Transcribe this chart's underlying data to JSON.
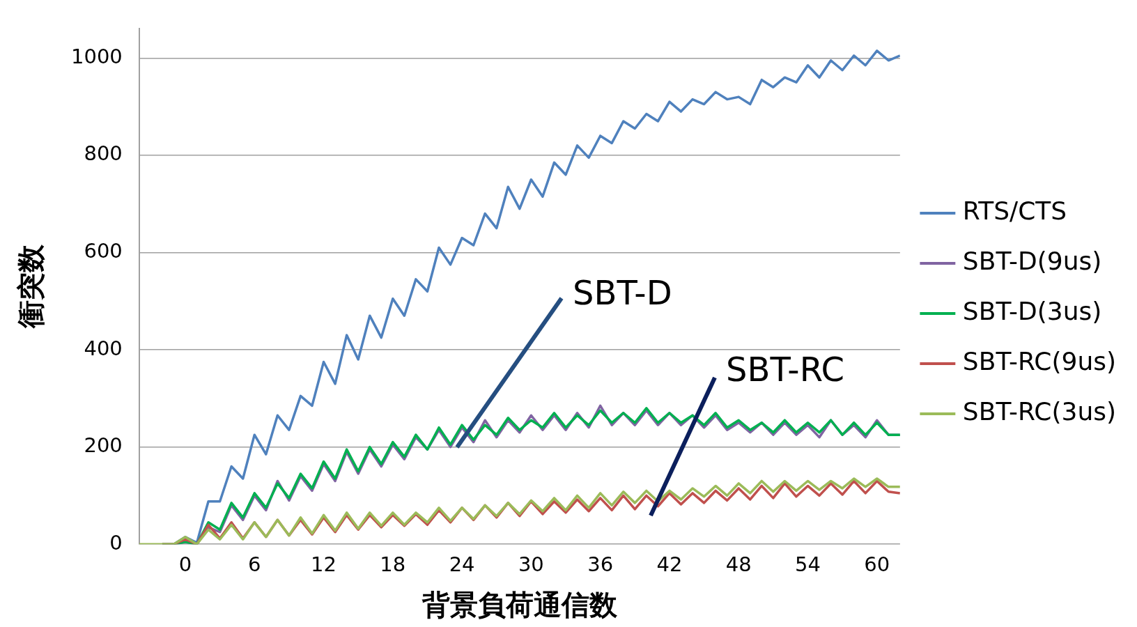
{
  "chart_data": {
    "type": "line",
    "xlabel": "背景負荷通信数",
    "ylabel": "衝突数",
    "x": [
      -4,
      -3,
      -2,
      -1,
      0,
      1,
      2,
      3,
      4,
      5,
      6,
      7,
      8,
      9,
      10,
      11,
      12,
      13,
      14,
      15,
      16,
      17,
      18,
      19,
      20,
      21,
      22,
      23,
      24,
      25,
      26,
      27,
      28,
      29,
      30,
      31,
      32,
      33,
      34,
      35,
      36,
      37,
      38,
      39,
      40,
      41,
      42,
      43,
      44,
      45,
      46,
      47,
      48,
      49,
      50,
      51,
      52,
      53,
      54,
      55,
      56,
      57,
      58,
      59,
      60,
      61,
      62
    ],
    "series": [
      {
        "name": "RTS/CTS",
        "color": "#4f81bd",
        "values": [
          null,
          null,
          null,
          0,
          15,
          3,
          88,
          88,
          160,
          135,
          225,
          185,
          265,
          235,
          305,
          285,
          375,
          330,
          430,
          380,
          470,
          425,
          505,
          470,
          545,
          520,
          610,
          575,
          630,
          615,
          680,
          650,
          735,
          690,
          750,
          715,
          785,
          760,
          820,
          795,
          840,
          825,
          870,
          855,
          885,
          870,
          910,
          890,
          915,
          905,
          930,
          915,
          920,
          905,
          955,
          940,
          960,
          950,
          985,
          960,
          995,
          975,
          1005,
          985,
          1015,
          995,
          1005
        ]
      },
      {
        "name": "SBT-D(9us)",
        "color": "#8064a2",
        "values": [
          null,
          null,
          0,
          0,
          5,
          0,
          35,
          25,
          80,
          50,
          100,
          70,
          130,
          90,
          140,
          110,
          165,
          130,
          190,
          145,
          195,
          160,
          205,
          175,
          220,
          195,
          235,
          200,
          240,
          210,
          255,
          220,
          255,
          230,
          265,
          235,
          265,
          235,
          270,
          240,
          285,
          245,
          270,
          245,
          275,
          245,
          270,
          245,
          265,
          240,
          265,
          235,
          250,
          230,
          250,
          225,
          250,
          225,
          245,
          220,
          255,
          225,
          245,
          220,
          255,
          225,
          225
        ]
      },
      {
        "name": "SBT-D(3us)",
        "color": "#00b050",
        "values": [
          null,
          null,
          0,
          0,
          5,
          0,
          45,
          30,
          85,
          55,
          105,
          75,
          125,
          95,
          145,
          115,
          170,
          135,
          195,
          150,
          200,
          165,
          210,
          180,
          225,
          195,
          240,
          205,
          245,
          215,
          245,
          225,
          260,
          235,
          255,
          240,
          270,
          240,
          265,
          245,
          275,
          250,
          270,
          250,
          280,
          250,
          270,
          250,
          265,
          245,
          270,
          240,
          255,
          235,
          250,
          230,
          255,
          230,
          250,
          230,
          255,
          225,
          250,
          225,
          250,
          225,
          225
        ]
      },
      {
        "name": "SBT-RC(9us)",
        "color": "#c0504d",
        "values": [
          null,
          null,
          0,
          0,
          10,
          0,
          40,
          12,
          45,
          12,
          45,
          15,
          50,
          18,
          50,
          20,
          55,
          25,
          60,
          30,
          60,
          35,
          60,
          38,
          62,
          40,
          70,
          45,
          75,
          50,
          80,
          55,
          85,
          58,
          88,
          62,
          88,
          65,
          92,
          68,
          95,
          70,
          100,
          72,
          100,
          78,
          105,
          82,
          105,
          85,
          110,
          90,
          115,
          92,
          120,
          95,
          125,
          98,
          120,
          100,
          125,
          102,
          130,
          105,
          130,
          108,
          105
        ]
      },
      {
        "name": "SBT-RC(3us)",
        "color": "#9bbb59",
        "values": [
          0,
          0,
          0,
          0,
          15,
          0,
          30,
          10,
          40,
          10,
          45,
          15,
          50,
          18,
          55,
          22,
          60,
          28,
          65,
          32,
          65,
          38,
          65,
          40,
          65,
          45,
          75,
          48,
          75,
          52,
          80,
          58,
          85,
          62,
          90,
          68,
          95,
          70,
          100,
          75,
          105,
          80,
          108,
          85,
          110,
          88,
          110,
          92,
          115,
          98,
          120,
          100,
          125,
          105,
          130,
          108,
          130,
          110,
          130,
          112,
          130,
          115,
          135,
          118,
          135,
          118,
          118
        ]
      }
    ],
    "annotations": [
      "SBT-D",
      "SBT-RC"
    ],
    "xlim": [
      -4,
      62
    ],
    "xticks": [
      0,
      6,
      12,
      18,
      24,
      30,
      36,
      42,
      48,
      54,
      60
    ],
    "ylim": [
      0,
      1060
    ],
    "yticks": [
      0,
      200,
      400,
      600,
      800,
      1000
    ],
    "grid": "y",
    "legend": "right",
    "marker": "none",
    "line_style": "solid"
  }
}
